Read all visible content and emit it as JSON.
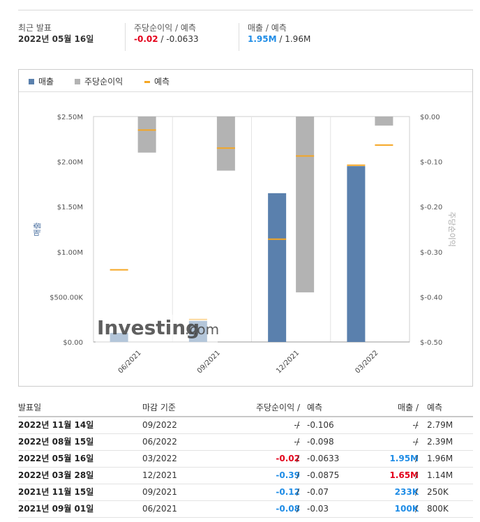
{
  "summary": {
    "latest_label": "최근 발표",
    "latest_date": "2022년 05월 16일",
    "eps_label": "주당순이익 / 예측",
    "eps_actual": "-0.02",
    "eps_forecast": "-0.0633",
    "rev_label": "매출 / 예측",
    "rev_actual": "1.95M",
    "rev_forecast": "1.96M",
    "sep": " / "
  },
  "legend": {
    "revenue": "매출",
    "eps": "주당순이익",
    "forecast": "예측",
    "colors": {
      "revenue": "#5a80ad",
      "eps": "#b3b3b3",
      "forecast": "#f5a623"
    }
  },
  "watermark": {
    "text": "Investing",
    "suffix": ".com"
  },
  "chart_data": {
    "type": "bar",
    "categories": [
      "06/2021",
      "09/2021",
      "12/2021",
      "03/2022"
    ],
    "series": [
      {
        "name": "매출",
        "axis": "left",
        "values": [
          100000,
          233000,
          1650000,
          1950000
        ],
        "forecast": [
          800000,
          250000,
          1140000,
          1960000
        ]
      },
      {
        "name": "주당순이익",
        "axis": "right",
        "values": [
          -0.08,
          -0.12,
          -0.39,
          -0.02
        ],
        "forecast": [
          -0.03,
          -0.07,
          -0.0875,
          -0.0633
        ]
      }
    ],
    "ylabel_left": "매출",
    "ylabel_right": "주당순이익",
    "ylim_left": [
      0,
      2500000
    ],
    "ylim_right": [
      -0.5,
      0
    ],
    "yticks_left": [
      "$0.00",
      "$500.00K",
      "$1.00M",
      "$1.50M",
      "$2.00M",
      "$2.50M"
    ],
    "yticks_right": [
      "$-0.50",
      "$-0.40",
      "$-0.30",
      "$-0.20",
      "$-0.10",
      "$0.00"
    ],
    "legend_position": "top"
  },
  "table": {
    "headers": {
      "date": "발표일",
      "period": "마감 기준",
      "eps": "주당순이익 /",
      "eps_f": "예측",
      "rev": "매출 /",
      "rev_f": "예측"
    },
    "rows": [
      {
        "date": "2022년 11월 14일",
        "period": "09/2022",
        "eps": "--",
        "eps_color": "",
        "eps_f": "-0.106",
        "rev": "--",
        "rev_color": "",
        "rev_f": "2.79M"
      },
      {
        "date": "2022년 08월 15일",
        "period": "06/2022",
        "eps": "--",
        "eps_color": "",
        "eps_f": "-0.098",
        "rev": "--",
        "rev_color": "",
        "rev_f": "2.39M"
      },
      {
        "date": "2022년 05월 16일",
        "period": "03/2022",
        "eps": "-0.02",
        "eps_color": "red",
        "eps_f": "-0.0633",
        "rev": "1.95M",
        "rev_color": "blue",
        "rev_f": "1.96M"
      },
      {
        "date": "2022년 03월 28일",
        "period": "12/2021",
        "eps": "-0.39",
        "eps_color": "blue",
        "eps_f": "-0.0875",
        "rev": "1.65M",
        "rev_color": "red",
        "rev_f": "1.14M"
      },
      {
        "date": "2021년 11월 15일",
        "period": "09/2021",
        "eps": "-0.12",
        "eps_color": "blue",
        "eps_f": "-0.07",
        "rev": "233K",
        "rev_color": "blue",
        "rev_f": "250K"
      },
      {
        "date": "2021년 09월 01일",
        "period": "06/2021",
        "eps": "-0.08",
        "eps_color": "blue",
        "eps_f": "-0.03",
        "rev": "100K",
        "rev_color": "blue",
        "rev_f": "800K"
      }
    ]
  }
}
